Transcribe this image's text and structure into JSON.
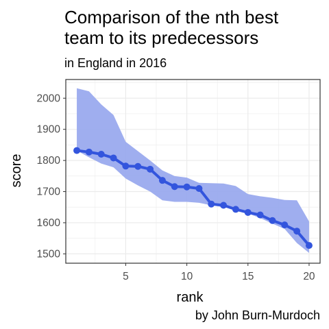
{
  "chart_data": {
    "type": "line",
    "title_lines": [
      "Comparison of the nth best",
      "team to its predecessors"
    ],
    "subtitle": "in England in 2016",
    "caption": "by John Burn-Murdoch",
    "xlabel": "rank",
    "ylabel": "score",
    "xlim": [
      0.1,
      20.9
    ],
    "ylim": [
      1470,
      2060
    ],
    "x_ticks": [
      5,
      10,
      15,
      20
    ],
    "y_ticks": [
      1500,
      1600,
      1700,
      1800,
      1900,
      2000
    ],
    "grid": true,
    "colors": {
      "line": "#3355dd",
      "band": "#9aaaee",
      "panel_border": "#333333",
      "grid": "#ebebeb"
    },
    "series": [
      {
        "x": [
          1,
          2,
          3,
          4,
          5,
          6,
          7,
          8,
          9,
          10,
          11,
          12,
          13,
          14,
          15,
          16,
          17,
          18,
          19,
          20
        ],
        "y": [
          1832,
          1827,
          1820,
          1808,
          1782,
          1781,
          1772,
          1736,
          1716,
          1715,
          1710,
          1660,
          1656,
          1643,
          1633,
          1625,
          1607,
          1593,
          1573,
          1527
        ],
        "upper": [
          2032,
          2022,
          1980,
          1946,
          1860,
          1830,
          1800,
          1768,
          1750,
          1745,
          1728,
          1727,
          1726,
          1718,
          1692,
          1685,
          1680,
          1673,
          1672,
          1604
        ],
        "lower": [
          1832,
          1810,
          1790,
          1778,
          1742,
          1720,
          1700,
          1672,
          1667,
          1667,
          1664,
          1656,
          1650,
          1644,
          1630,
          1615,
          1597,
          1580,
          1535,
          1503
        ]
      }
    ]
  }
}
